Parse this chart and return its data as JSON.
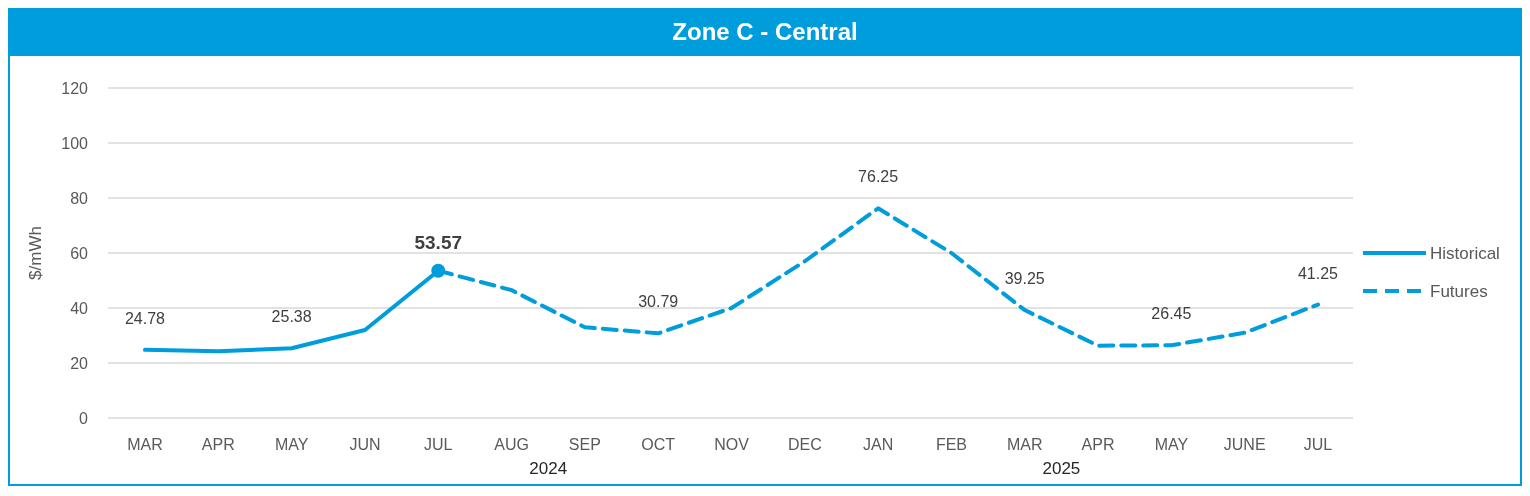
{
  "chart_data": {
    "type": "line",
    "title": "Zone C - Central",
    "ylabel": "$/mWh",
    "categories": [
      "MAR",
      "APR",
      "MAY",
      "JUN",
      "JUL",
      "AUG",
      "SEP",
      "OCT",
      "NOV",
      "DEC",
      "JAN",
      "FEB",
      "MAR",
      "APR",
      "MAY",
      "JUNE",
      "JUL"
    ],
    "series": [
      {
        "name": "Historical",
        "color": "#009ddc",
        "line_style": "solid",
        "values": [
          24.78,
          24.3,
          25.38,
          32,
          53.57,
          null,
          null,
          null,
          null,
          null,
          null,
          null,
          null,
          null,
          null,
          null,
          null
        ],
        "value_labels": [
          "24.78",
          null,
          "25.38",
          null,
          null,
          null,
          null,
          null,
          null,
          null,
          null,
          null,
          null,
          null,
          null,
          null,
          null
        ]
      },
      {
        "name": "Futures",
        "color": "#009ddc",
        "line_style": "dashed",
        "values": [
          null,
          null,
          null,
          null,
          53.57,
          46.5,
          33,
          30.79,
          40,
          57,
          76.25,
          60,
          39.25,
          26.3,
          26.45,
          31,
          41.25
        ],
        "value_labels": [
          null,
          null,
          null,
          null,
          null,
          null,
          null,
          "30.79",
          null,
          null,
          "76.25",
          null,
          "39.25",
          null,
          "26.45",
          null,
          "41.25"
        ]
      },
      {
        "type": "scatter",
        "color": "#009ddc",
        "marker": "circle",
        "values": [
          null,
          null,
          null,
          null,
          53.57,
          null,
          null,
          null,
          null,
          null,
          null,
          null,
          null,
          null,
          null,
          null,
          null
        ],
        "value_labels": [
          null,
          null,
          null,
          null,
          "53.57",
          null,
          null,
          null,
          null,
          null,
          null,
          null,
          null,
          null,
          null,
          null,
          null
        ]
      }
    ],
    "ylim": [
      0,
      120
    ],
    "yticks": [
      0,
      20,
      40,
      60,
      80,
      100,
      120
    ],
    "grid": "y",
    "legend": "right",
    "annotations": [
      "2024",
      "2025"
    ]
  }
}
